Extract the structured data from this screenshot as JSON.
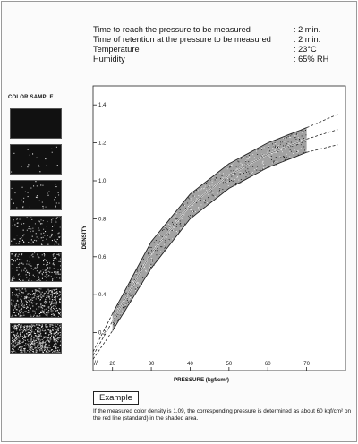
{
  "conditions": [
    {
      "label": "Time to reach the pressure to be measured",
      "value": ": 2 min."
    },
    {
      "label": "Time of retention at the pressure to be measured",
      "value": ": 2 min."
    },
    {
      "label": "Temperature",
      "value": ": 23°C"
    },
    {
      "label": "Humidity",
      "value": ": 65% RH"
    }
  ],
  "color_sample": {
    "title": "COLOR SAMPLE",
    "speckle_levels": [
      0.0,
      0.02,
      0.05,
      0.12,
      0.22,
      0.38,
      0.62
    ]
  },
  "chart_data": {
    "type": "line",
    "xlabel": "PRESSURE (kgf/cm²)",
    "ylabel": "DENSITY",
    "xlim": [
      15,
      80
    ],
    "ylim": [
      0.0,
      1.5
    ],
    "x_ticks": [
      "20",
      "30",
      "40",
      "50",
      "60",
      "70"
    ],
    "y_ticks": [
      "0.2",
      "0.4",
      "0.6",
      "0.8",
      "1.0",
      "1.2",
      "1.4"
    ],
    "axis_break_label": "//",
    "shaded_range_x": [
      20,
      70
    ],
    "series": [
      {
        "role": "upper",
        "x": [
          15,
          20,
          30,
          40,
          50,
          60,
          70,
          78
        ],
        "y": [
          0.1,
          0.3,
          0.68,
          0.93,
          1.09,
          1.2,
          1.28,
          1.35
        ]
      },
      {
        "role": "standard",
        "x": [
          15,
          20,
          30,
          40,
          50,
          60,
          70,
          78
        ],
        "y": [
          0.08,
          0.26,
          0.62,
          0.87,
          1.03,
          1.14,
          1.22,
          1.27
        ]
      },
      {
        "role": "lower",
        "x": [
          15,
          20,
          30,
          40,
          50,
          60,
          70,
          78
        ],
        "y": [
          0.06,
          0.21,
          0.54,
          0.8,
          0.96,
          1.07,
          1.15,
          1.19
        ]
      }
    ],
    "grid": false,
    "colors": {
      "axis": "#222222",
      "line": "#222222",
      "band": "#555555"
    }
  },
  "example": {
    "title": "Example",
    "text": "If the measured color density is 1.09, the corresponding pressure is determined as about 60 kgf/cm² on the red line (standard) in the shaded area."
  }
}
